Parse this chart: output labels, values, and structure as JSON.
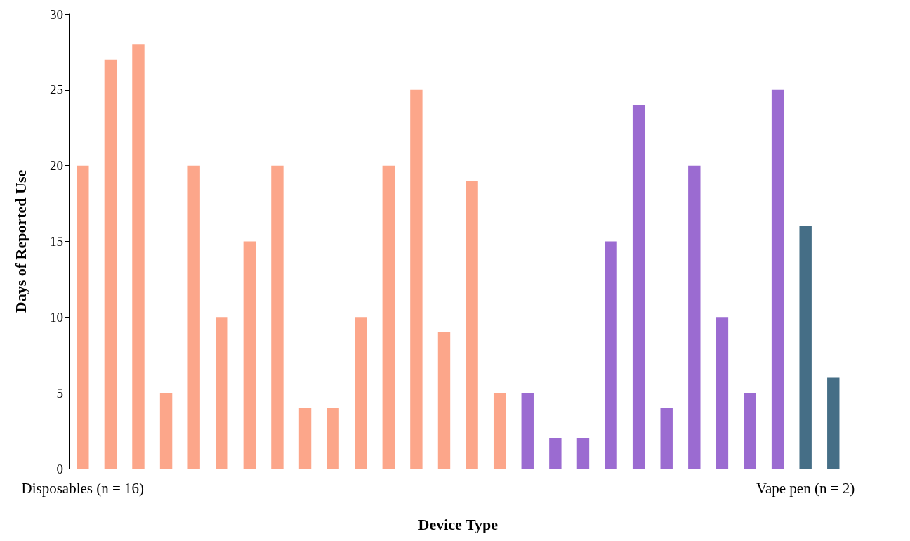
{
  "chart_data": {
    "type": "bar",
    "xlabel": "Device Type",
    "ylabel": "Days of Reported Use",
    "categories": [
      "Disposables (n = 16)",
      null,
      null,
      null,
      null,
      null,
      null,
      null,
      null,
      null,
      null,
      null,
      null,
      null,
      null,
      null,
      null,
      null,
      null,
      null,
      null,
      null,
      null,
      null,
      null,
      null,
      "Vape pen (n = 2)",
      null
    ],
    "values": [
      20,
      27,
      28,
      5,
      20,
      10,
      15,
      20,
      4,
      4,
      10,
      20,
      25,
      9,
      19,
      5,
      5,
      2,
      2,
      15,
      24,
      4,
      20,
      10,
      5,
      25,
      16,
      6
    ],
    "colors": [
      "#fca68a",
      "#fca68a",
      "#fca68a",
      "#fca68a",
      "#fca68a",
      "#fca68a",
      "#fca68a",
      "#fca68a",
      "#fca68a",
      "#fca68a",
      "#fca68a",
      "#fca68a",
      "#fca68a",
      "#fca68a",
      "#fca68a",
      "#fca68a",
      "#9b6bd1",
      "#9b6bd1",
      "#9b6bd1",
      "#9b6bd1",
      "#9b6bd1",
      "#9b6bd1",
      "#9b6bd1",
      "#9b6bd1",
      "#9b6bd1",
      "#9b6bd1",
      "#456e86",
      "#456e86"
    ],
    "ylim": [
      0,
      30
    ],
    "yticks": [
      0,
      5,
      10,
      15,
      20,
      25,
      30
    ],
    "grid": false
  }
}
